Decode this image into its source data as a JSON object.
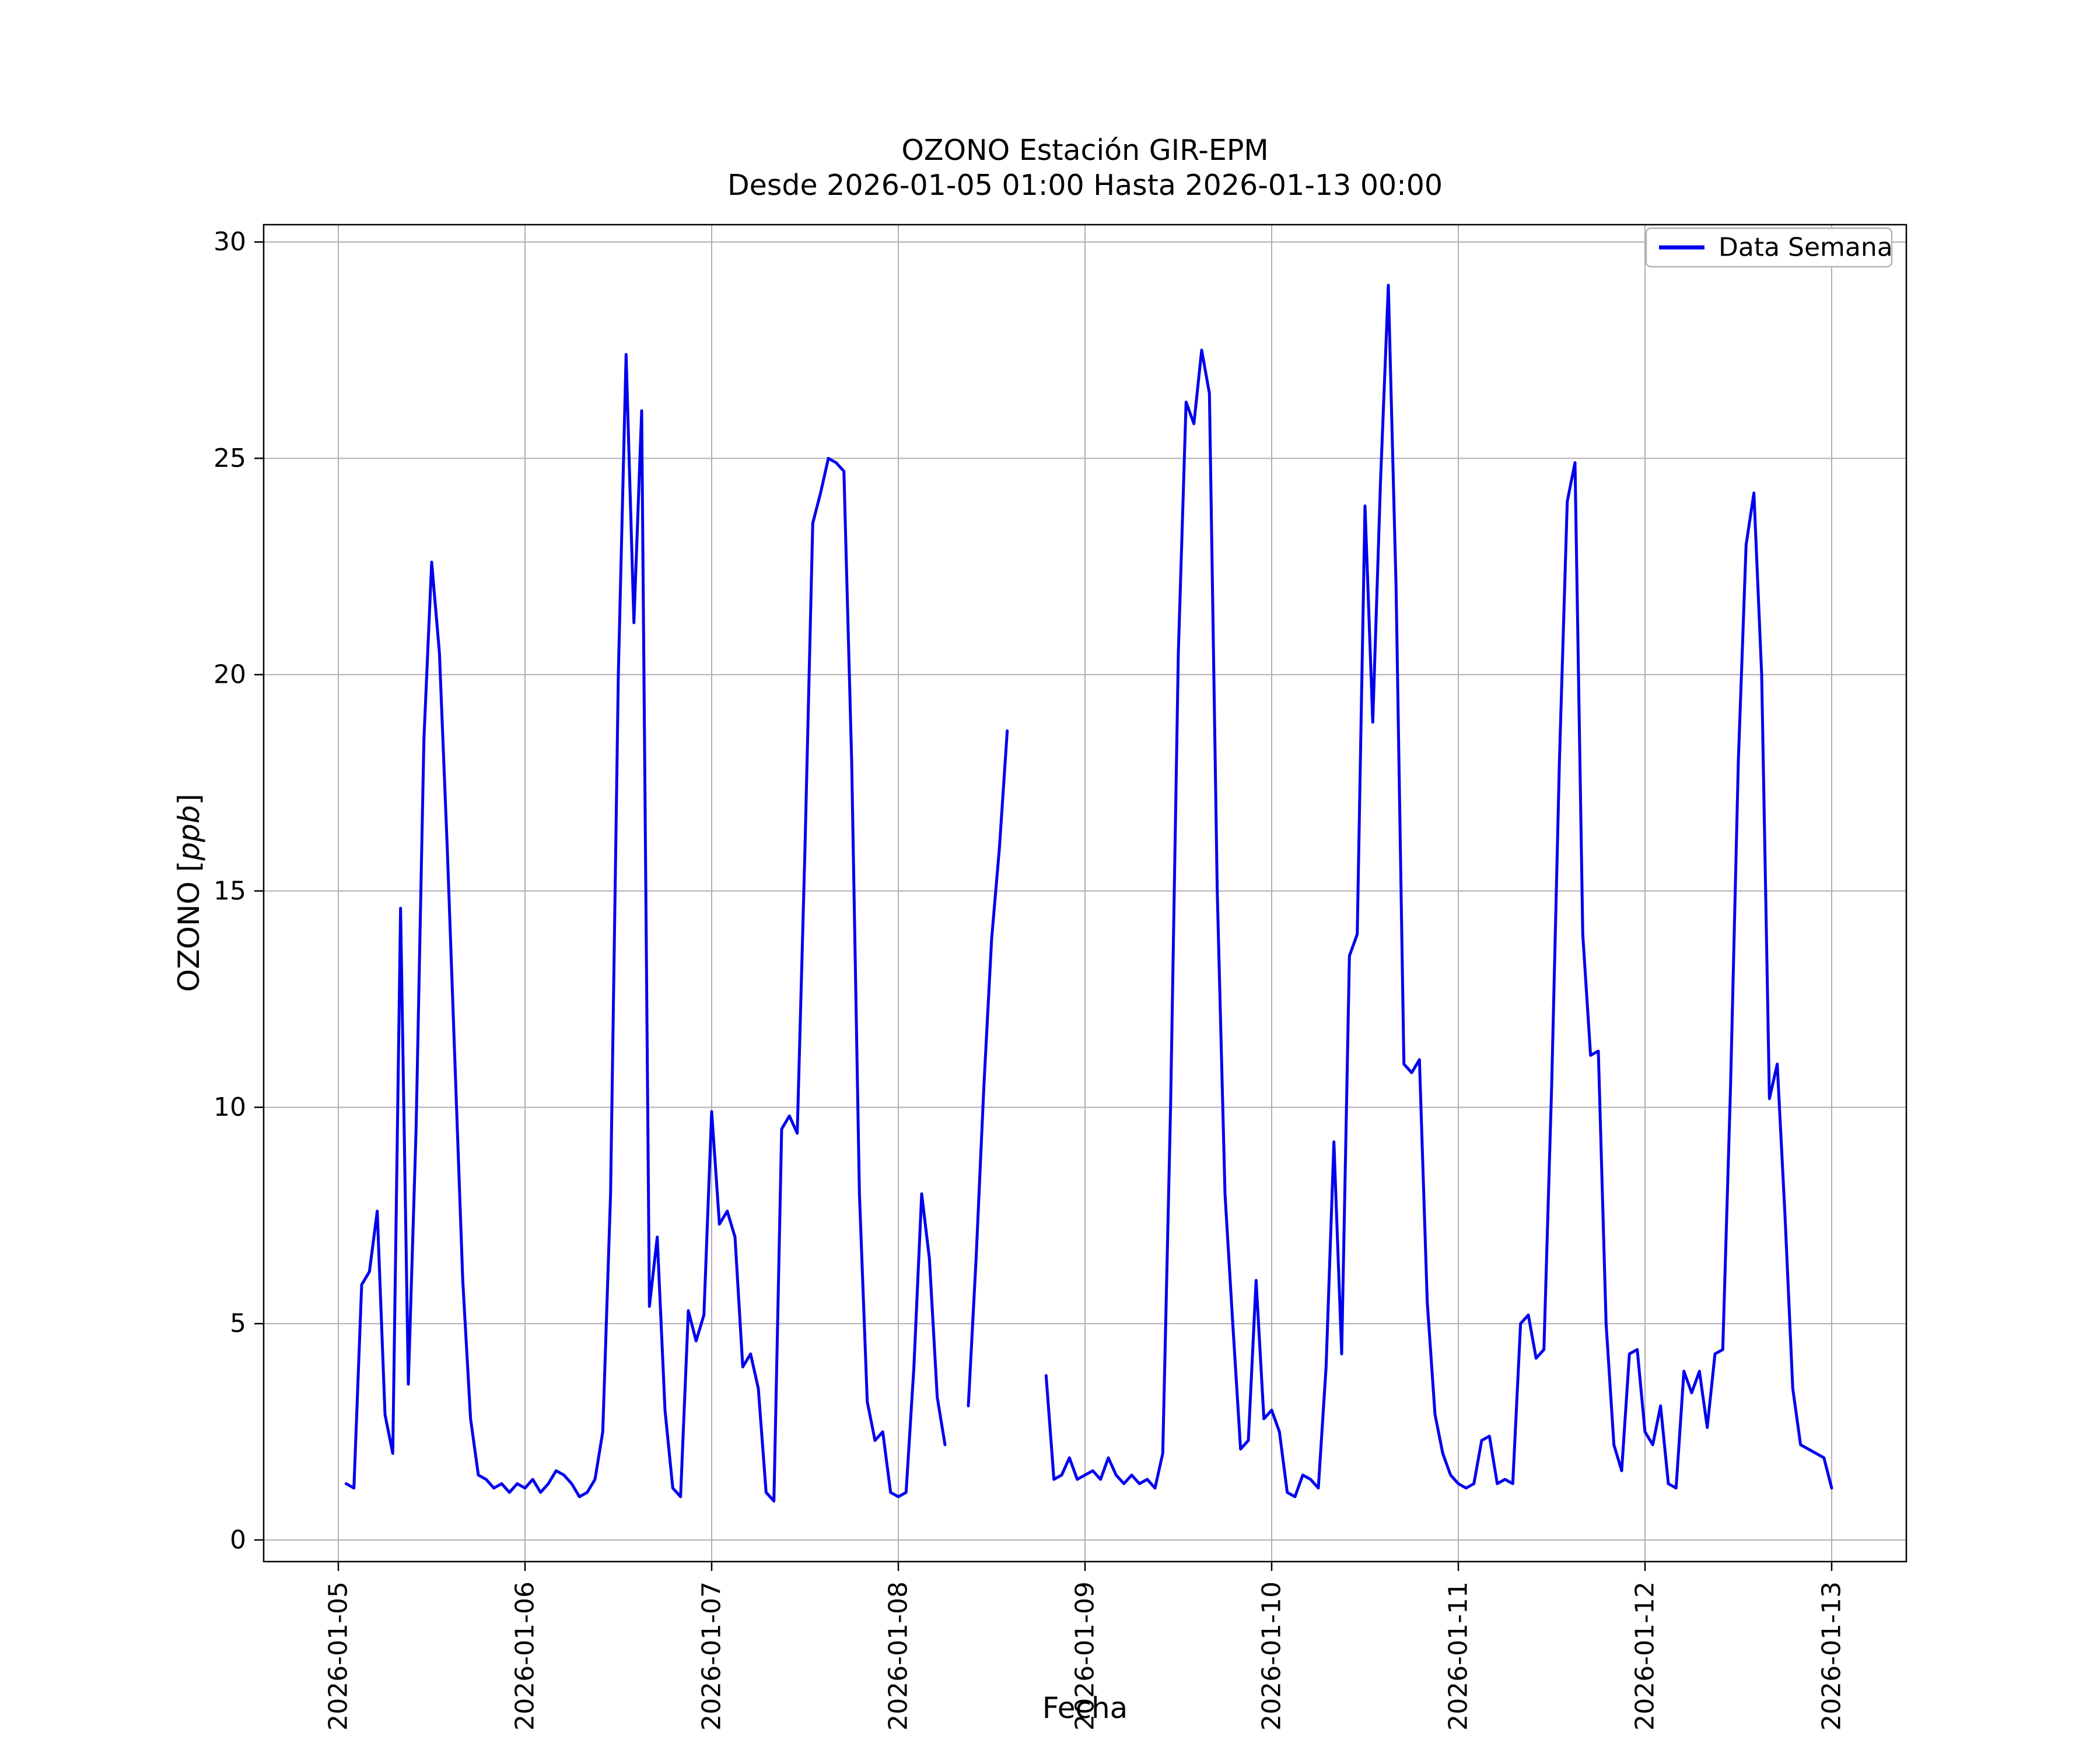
{
  "figure": {
    "title": "OZONO Estación GIR-EPM",
    "subtitle": "Desde 2026-01-05 01:00 Hasta 2026-01-13 00:00",
    "xlabel": "Fecha",
    "ylabel_prefix": "OZONO [",
    "ylabel_italic": "ppb",
    "ylabel_suffix": "]"
  },
  "chart_data": {
    "type": "line",
    "title": "OZONO Estación GIR-EPM",
    "subtitle": "Desde 2026-01-05 01:00 Hasta 2026-01-13 00:00",
    "xlabel": "Fecha",
    "ylabel": "OZONO [ppb]",
    "grid": true,
    "legend": {
      "position": "upper right",
      "entries": [
        "Data Semana"
      ]
    },
    "line_color": "#0000ee",
    "background": "#ffffff",
    "grid_color": "#b0b0b0",
    "x_start": "2026-01-05 01:00",
    "x_end": "2026-01-13 00:00",
    "x_interval_hours": 1,
    "x_tick_positions_hours": [
      0,
      24,
      48,
      72,
      96,
      120,
      144,
      168,
      192
    ],
    "x_tick_labels": [
      "2026-01-05",
      "2026-01-06",
      "2026-01-07",
      "2026-01-08",
      "2026-01-09",
      "2026-01-10",
      "2026-01-11",
      "2026-01-12",
      "2026-01-13"
    ],
    "y_ticks": [
      0,
      5,
      10,
      15,
      20,
      25,
      30
    ],
    "xlim_hours": [
      -9.6,
      201.6
    ],
    "ylim": [
      -0.5,
      30.4
    ],
    "x_start_hour": 1,
    "series": [
      {
        "name": "Data Semana",
        "color": "#0000ee",
        "values_ppb_hourly": [
          1.3,
          1.2,
          5.9,
          6.2,
          7.6,
          2.9,
          2.0,
          14.6,
          3.6,
          9.5,
          18.5,
          22.6,
          20.5,
          16.0,
          11.0,
          6.0,
          2.8,
          1.5,
          1.4,
          1.2,
          1.3,
          1.1,
          1.3,
          1.2,
          1.4,
          1.1,
          1.3,
          1.6,
          1.5,
          1.3,
          1.0,
          1.1,
          1.4,
          2.5,
          8.0,
          20.0,
          27.4,
          21.2,
          26.1,
          5.4,
          7.0,
          3.0,
          1.2,
          1.0,
          5.3,
          4.6,
          5.2,
          9.9,
          7.3,
          7.6,
          7.0,
          4.0,
          4.3,
          3.5,
          1.1,
          0.9,
          9.5,
          9.8,
          9.4,
          16.0,
          23.5,
          24.2,
          25.0,
          24.9,
          24.7,
          18.0,
          8.0,
          3.2,
          2.3,
          2.5,
          1.1,
          1.0,
          1.1,
          4.0,
          8.0,
          6.5,
          3.3,
          2.2,
          null,
          null,
          3.1,
          6.5,
          10.5,
          13.9,
          16.0,
          18.7,
          null,
          null,
          null,
          null,
          3.8,
          1.4,
          1.5,
          1.9,
          1.4,
          1.5,
          1.6,
          1.4,
          1.9,
          1.5,
          1.3,
          1.5,
          1.3,
          1.4,
          1.2,
          2.0,
          10.0,
          20.5,
          26.3,
          25.8,
          27.5,
          26.5,
          15.0,
          8.0,
          5.0,
          2.1,
          2.3,
          6.0,
          2.8,
          3.0,
          2.5,
          1.1,
          1.0,
          1.5,
          1.4,
          1.2,
          4.0,
          9.2,
          4.3,
          13.5,
          14.0,
          23.9,
          18.9,
          24.5,
          29.0,
          22.0,
          11.0,
          10.8,
          11.1,
          5.5,
          2.9,
          2.0,
          1.5,
          1.3,
          1.2,
          1.3,
          2.3,
          2.4,
          1.3,
          1.4,
          1.3,
          5.0,
          5.2,
          4.2,
          4.4,
          10.5,
          18.0,
          24.0,
          24.9,
          14.0,
          11.2,
          11.3,
          5.0,
          2.2,
          1.6,
          4.3,
          4.4,
          2.5,
          2.2,
          3.1,
          1.3,
          1.2,
          3.9,
          3.4,
          3.9,
          2.6,
          4.3,
          4.4,
          10.5,
          18.0,
          23.0,
          24.2,
          20.0,
          10.2,
          11.0,
          7.5,
          3.5,
          2.2,
          2.1,
          2.0,
          1.9,
          1.2
        ]
      }
    ]
  }
}
